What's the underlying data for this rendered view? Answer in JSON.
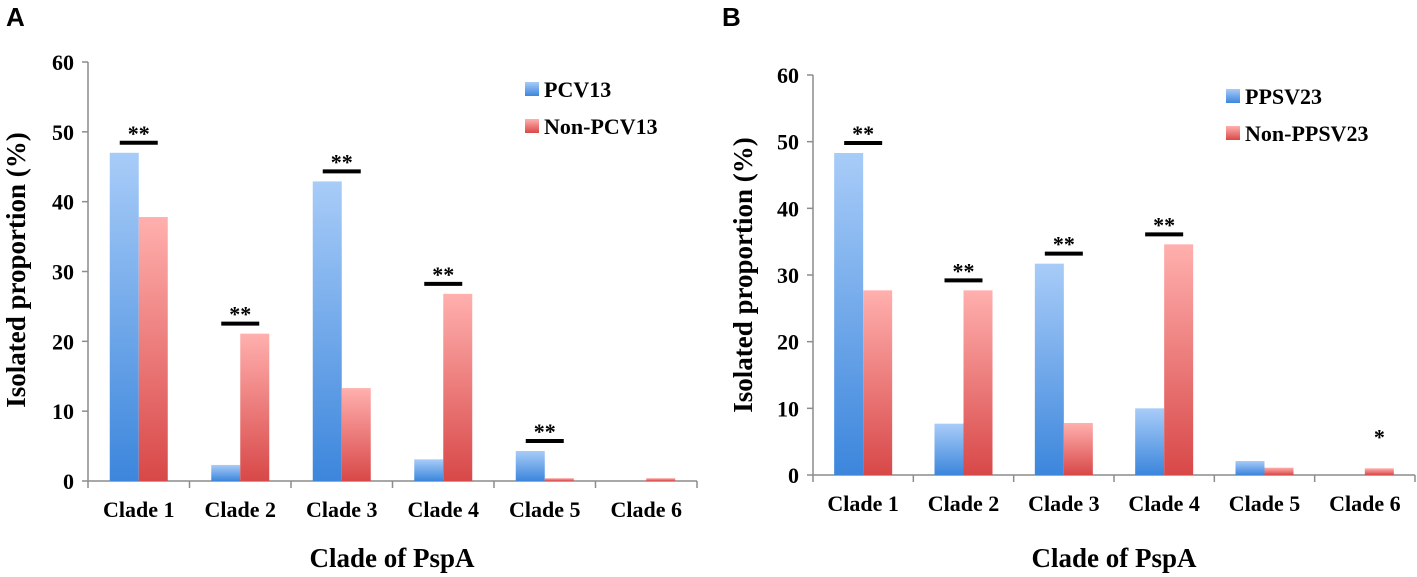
{
  "colors": {
    "series_a_top": "#a8ccf8",
    "series_a_bottom": "#3c86dc",
    "series_b_top": "#ffb0ae",
    "series_b_bottom": "#d84848",
    "axis": "#8c8c8c",
    "text": "#000000"
  },
  "chart_data": [
    {
      "panel": "A",
      "type": "bar",
      "title": "",
      "xlabel": "Clade of PspA",
      "ylabel": "Isolated proportion (%)",
      "ylim": [
        0,
        60
      ],
      "yticks": [
        0,
        10,
        20,
        30,
        40,
        50,
        60
      ],
      "grid": false,
      "legend_position": "top-right",
      "categories": [
        "Clade 1",
        "Clade 2",
        "Clade 3",
        "Clade 4",
        "Clade 5",
        "Clade 6"
      ],
      "series": [
        {
          "name": "PCV13",
          "values": [
            47.0,
            2.3,
            42.9,
            3.1,
            4.3,
            0.0
          ]
        },
        {
          "name": "Non-PCV13",
          "values": [
            37.8,
            21.1,
            13.3,
            26.8,
            0.4,
            0.4
          ]
        }
      ],
      "significance": [
        "**",
        "**",
        "**",
        "**",
        "**",
        ""
      ]
    },
    {
      "panel": "B",
      "type": "bar",
      "title": "",
      "xlabel": "Clade of PspA",
      "ylabel": "Isolated proportion (%)",
      "ylim": [
        0,
        60
      ],
      "yticks": [
        0,
        10,
        20,
        30,
        40,
        50,
        60
      ],
      "grid": false,
      "legend_position": "top-right",
      "categories": [
        "Clade 1",
        "Clade 2",
        "Clade 3",
        "Clade 4",
        "Clade 5",
        "Clade 6"
      ],
      "series": [
        {
          "name": "PPSV23",
          "values": [
            48.3,
            7.7,
            31.7,
            10.0,
            2.1,
            0.0
          ]
        },
        {
          "name": "Non-PPSV23",
          "values": [
            27.7,
            27.7,
            7.8,
            34.6,
            1.1,
            1.0
          ]
        }
      ],
      "significance": [
        "**",
        "**",
        "**",
        "**",
        "",
        "*"
      ]
    }
  ]
}
